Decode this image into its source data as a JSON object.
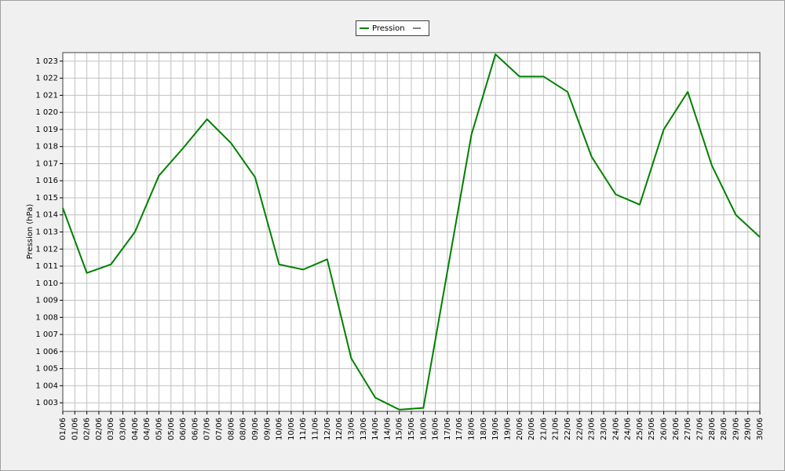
{
  "chart_data": {
    "type": "line",
    "y_label": "Pression (hPa)",
    "x": [
      1,
      2,
      3,
      4,
      5,
      6,
      7,
      8,
      9,
      10,
      11,
      12,
      13,
      14,
      15,
      16,
      17,
      18,
      19,
      20,
      21,
      22,
      23,
      24,
      25,
      26,
      27,
      28,
      29,
      30
    ],
    "series": [
      {
        "name": "Pression",
        "color": "#008000",
        "values": [
          1014.4,
          1010.6,
          1011.1,
          1013.0,
          1016.3,
          1017.9,
          1019.6,
          1018.2,
          1016.2,
          1011.1,
          1010.8,
          1011.4,
          1005.6,
          1003.3,
          1002.6,
          1002.7,
          1010.7,
          1018.7,
          1023.4,
          1022.1,
          1022.1,
          1021.2,
          1017.4,
          1015.2,
          1014.6,
          1019.0,
          1021.2,
          1016.9,
          1014.0,
          1012.7
        ]
      }
    ],
    "xlim": [
      1,
      30
    ],
    "xticks": [
      {
        "value": 1,
        "label": "01/06"
      },
      {
        "value": 1.5,
        "label": "01/06"
      },
      {
        "value": 2,
        "label": "02/06"
      },
      {
        "value": 2.5,
        "label": "02/06"
      },
      {
        "value": 3,
        "label": "03/06"
      },
      {
        "value": 3.5,
        "label": "03/06"
      },
      {
        "value": 4,
        "label": "04/06"
      },
      {
        "value": 4.5,
        "label": "04/06"
      },
      {
        "value": 5,
        "label": "05/06"
      },
      {
        "value": 5.5,
        "label": "05/06"
      },
      {
        "value": 6,
        "label": "06/06"
      },
      {
        "value": 6.5,
        "label": "06/06"
      },
      {
        "value": 7,
        "label": "07/06"
      },
      {
        "value": 7.5,
        "label": "07/06"
      },
      {
        "value": 8,
        "label": "08/06"
      },
      {
        "value": 8.5,
        "label": "08/06"
      },
      {
        "value": 9,
        "label": "09/06"
      },
      {
        "value": 9.5,
        "label": "09/06"
      },
      {
        "value": 10,
        "label": "10/06"
      },
      {
        "value": 10.5,
        "label": "10/06"
      },
      {
        "value": 11,
        "label": "11/06"
      },
      {
        "value": 11.5,
        "label": "11/06"
      },
      {
        "value": 12,
        "label": "12/06"
      },
      {
        "value": 12.5,
        "label": "12/06"
      },
      {
        "value": 13,
        "label": "13/06"
      },
      {
        "value": 13.5,
        "label": "13/06"
      },
      {
        "value": 14,
        "label": "14/06"
      },
      {
        "value": 14.5,
        "label": "14/06"
      },
      {
        "value": 15,
        "label": "15/06"
      },
      {
        "value": 15.5,
        "label": "15/06"
      },
      {
        "value": 16,
        "label": "16/06"
      },
      {
        "value": 16.5,
        "label": "16/06"
      },
      {
        "value": 17,
        "label": "17/06"
      },
      {
        "value": 17.5,
        "label": "17/06"
      },
      {
        "value": 18,
        "label": "18/06"
      },
      {
        "value": 18.5,
        "label": "18/06"
      },
      {
        "value": 19,
        "label": "19/06"
      },
      {
        "value": 19.5,
        "label": "19/06"
      },
      {
        "value": 20,
        "label": "20/06"
      },
      {
        "value": 20.5,
        "label": "20/06"
      },
      {
        "value": 21,
        "label": "21/06"
      },
      {
        "value": 21.5,
        "label": "21/06"
      },
      {
        "value": 22,
        "label": "22/06"
      },
      {
        "value": 22.5,
        "label": "22/06"
      },
      {
        "value": 23,
        "label": "23/06"
      },
      {
        "value": 23.5,
        "label": "23/06"
      },
      {
        "value": 24,
        "label": "24/06"
      },
      {
        "value": 24.5,
        "label": "24/06"
      },
      {
        "value": 25,
        "label": "25/06"
      },
      {
        "value": 25.5,
        "label": "25/06"
      },
      {
        "value": 26,
        "label": "26/06"
      },
      {
        "value": 26.5,
        "label": "26/06"
      },
      {
        "value": 27,
        "label": "27/06"
      },
      {
        "value": 27.5,
        "label": "27/06"
      },
      {
        "value": 28,
        "label": "28/06"
      },
      {
        "value": 28.5,
        "label": "28/06"
      },
      {
        "value": 29,
        "label": "29/06"
      },
      {
        "value": 29.5,
        "label": "29/06"
      },
      {
        "value": 30,
        "label": "30/06"
      }
    ],
    "ylim": [
      1002.5,
      1023.5
    ],
    "yticks": [
      {
        "value": 1003,
        "label": "1 003"
      },
      {
        "value": 1004,
        "label": "1 004"
      },
      {
        "value": 1005,
        "label": "1 005"
      },
      {
        "value": 1006,
        "label": "1 006"
      },
      {
        "value": 1007,
        "label": "1 007"
      },
      {
        "value": 1008,
        "label": "1 008"
      },
      {
        "value": 1009,
        "label": "1 009"
      },
      {
        "value": 1010,
        "label": "1 010"
      },
      {
        "value": 1011,
        "label": "1 011"
      },
      {
        "value": 1012,
        "label": "1 012"
      },
      {
        "value": 1013,
        "label": "1 013"
      },
      {
        "value": 1014,
        "label": "1 014"
      },
      {
        "value": 1015,
        "label": "1 015"
      },
      {
        "value": 1016,
        "label": "1 016"
      },
      {
        "value": 1017,
        "label": "1 017"
      },
      {
        "value": 1018,
        "label": "1 018"
      },
      {
        "value": 1019,
        "label": "1 019"
      },
      {
        "value": 1020,
        "label": "1 020"
      },
      {
        "value": 1021,
        "label": "1 021"
      },
      {
        "value": 1022,
        "label": "1 022"
      },
      {
        "value": 1023,
        "label": "1 023"
      }
    ],
    "grid": true
  }
}
